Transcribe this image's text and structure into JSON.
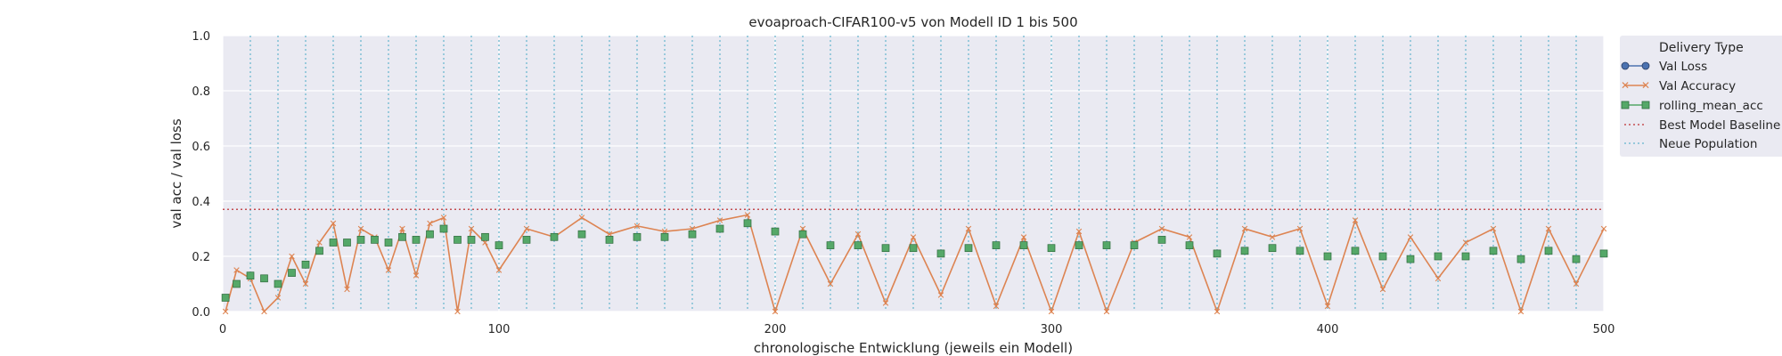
{
  "chart_data": {
    "type": "line",
    "title": "evoaproach-CIFAR100-v5 von Modell ID 1 bis 500",
    "xlabel": "chronologische Entwicklung (jeweils ein Modell)",
    "ylabel": "val acc / val loss",
    "xlim": [
      0,
      500
    ],
    "ylim": [
      0,
      1.0
    ],
    "x_ticks": [
      "0",
      "100",
      "200",
      "300",
      "400",
      "500"
    ],
    "y_ticks": [
      "0.0",
      "0.2",
      "0.4",
      "0.6",
      "0.8",
      "1.0"
    ],
    "grid": true,
    "legend": {
      "title": "Delivery Type",
      "placement": "outside-right",
      "entries": [
        "Val Loss",
        "Val Accuracy",
        "rolling_mean_acc",
        "Best Model Baseline",
        "Neue Population"
      ]
    },
    "colors": {
      "val_loss": "#4c72b0",
      "val_accuracy": "#dd8452",
      "rolling_mean_acc": "#55a868",
      "baseline": "#c44e52",
      "population": "#64b5cd",
      "background": "#eaeaf2",
      "grid": "#ffffff"
    },
    "best_model_baseline": 0.37,
    "population_boundaries": [
      10,
      20,
      30,
      40,
      50,
      60,
      70,
      80,
      90,
      100,
      110,
      120,
      130,
      140,
      150,
      160,
      170,
      180,
      190,
      200,
      210,
      220,
      230,
      240,
      250,
      260,
      270,
      280,
      290,
      300,
      310,
      320,
      330,
      340,
      350,
      360,
      370,
      380,
      390,
      400,
      410,
      420,
      430,
      440,
      450,
      460,
      470,
      480,
      490
    ],
    "series": [
      {
        "name": "Val Accuracy",
        "x": [
          1,
          5,
          10,
          15,
          20,
          25,
          30,
          35,
          40,
          45,
          50,
          55,
          60,
          65,
          70,
          75,
          80,
          85,
          90,
          95,
          100,
          110,
          120,
          130,
          140,
          150,
          160,
          170,
          180,
          190,
          200,
          210,
          220,
          230,
          240,
          250,
          260,
          270,
          280,
          290,
          300,
          310,
          320,
          330,
          340,
          350,
          360,
          370,
          380,
          390,
          400,
          410,
          420,
          430,
          440,
          450,
          460,
          470,
          480,
          490,
          500
        ],
        "values": [
          0.0,
          0.15,
          0.12,
          0.0,
          0.05,
          0.2,
          0.1,
          0.25,
          0.32,
          0.08,
          0.3,
          0.27,
          0.15,
          0.3,
          0.13,
          0.32,
          0.34,
          0.0,
          0.3,
          0.25,
          0.15,
          0.3,
          0.27,
          0.34,
          0.28,
          0.31,
          0.29,
          0.3,
          0.33,
          0.35,
          0.0,
          0.3,
          0.1,
          0.28,
          0.03,
          0.27,
          0.06,
          0.3,
          0.02,
          0.27,
          0.0,
          0.29,
          0.0,
          0.25,
          0.3,
          0.27,
          0.0,
          0.3,
          0.27,
          0.3,
          0.02,
          0.33,
          0.08,
          0.27,
          0.12,
          0.25,
          0.3,
          0.0,
          0.3,
          0.1,
          0.3
        ]
      },
      {
        "name": "rolling_mean_acc",
        "x": [
          1,
          5,
          10,
          15,
          20,
          25,
          30,
          35,
          40,
          45,
          50,
          55,
          60,
          65,
          70,
          75,
          80,
          85,
          90,
          95,
          100,
          110,
          120,
          130,
          140,
          150,
          160,
          170,
          180,
          190,
          200,
          210,
          220,
          230,
          240,
          250,
          260,
          270,
          280,
          290,
          300,
          310,
          320,
          330,
          340,
          350,
          360,
          370,
          380,
          390,
          400,
          410,
          420,
          430,
          440,
          450,
          460,
          470,
          480,
          490,
          500
        ],
        "values": [
          0.05,
          0.1,
          0.13,
          0.12,
          0.1,
          0.14,
          0.17,
          0.22,
          0.25,
          0.25,
          0.26,
          0.26,
          0.25,
          0.27,
          0.26,
          0.28,
          0.3,
          0.26,
          0.26,
          0.27,
          0.24,
          0.26,
          0.27,
          0.28,
          0.26,
          0.27,
          0.27,
          0.28,
          0.3,
          0.32,
          0.29,
          0.28,
          0.24,
          0.24,
          0.23,
          0.23,
          0.21,
          0.23,
          0.24,
          0.24,
          0.23,
          0.24,
          0.24,
          0.24,
          0.26,
          0.24,
          0.21,
          0.22,
          0.23,
          0.22,
          0.2,
          0.22,
          0.2,
          0.19,
          0.2,
          0.2,
          0.22,
          0.19,
          0.22,
          0.19,
          0.21
        ]
      },
      {
        "name": "Val Loss",
        "x": [],
        "values": []
      }
    ]
  }
}
